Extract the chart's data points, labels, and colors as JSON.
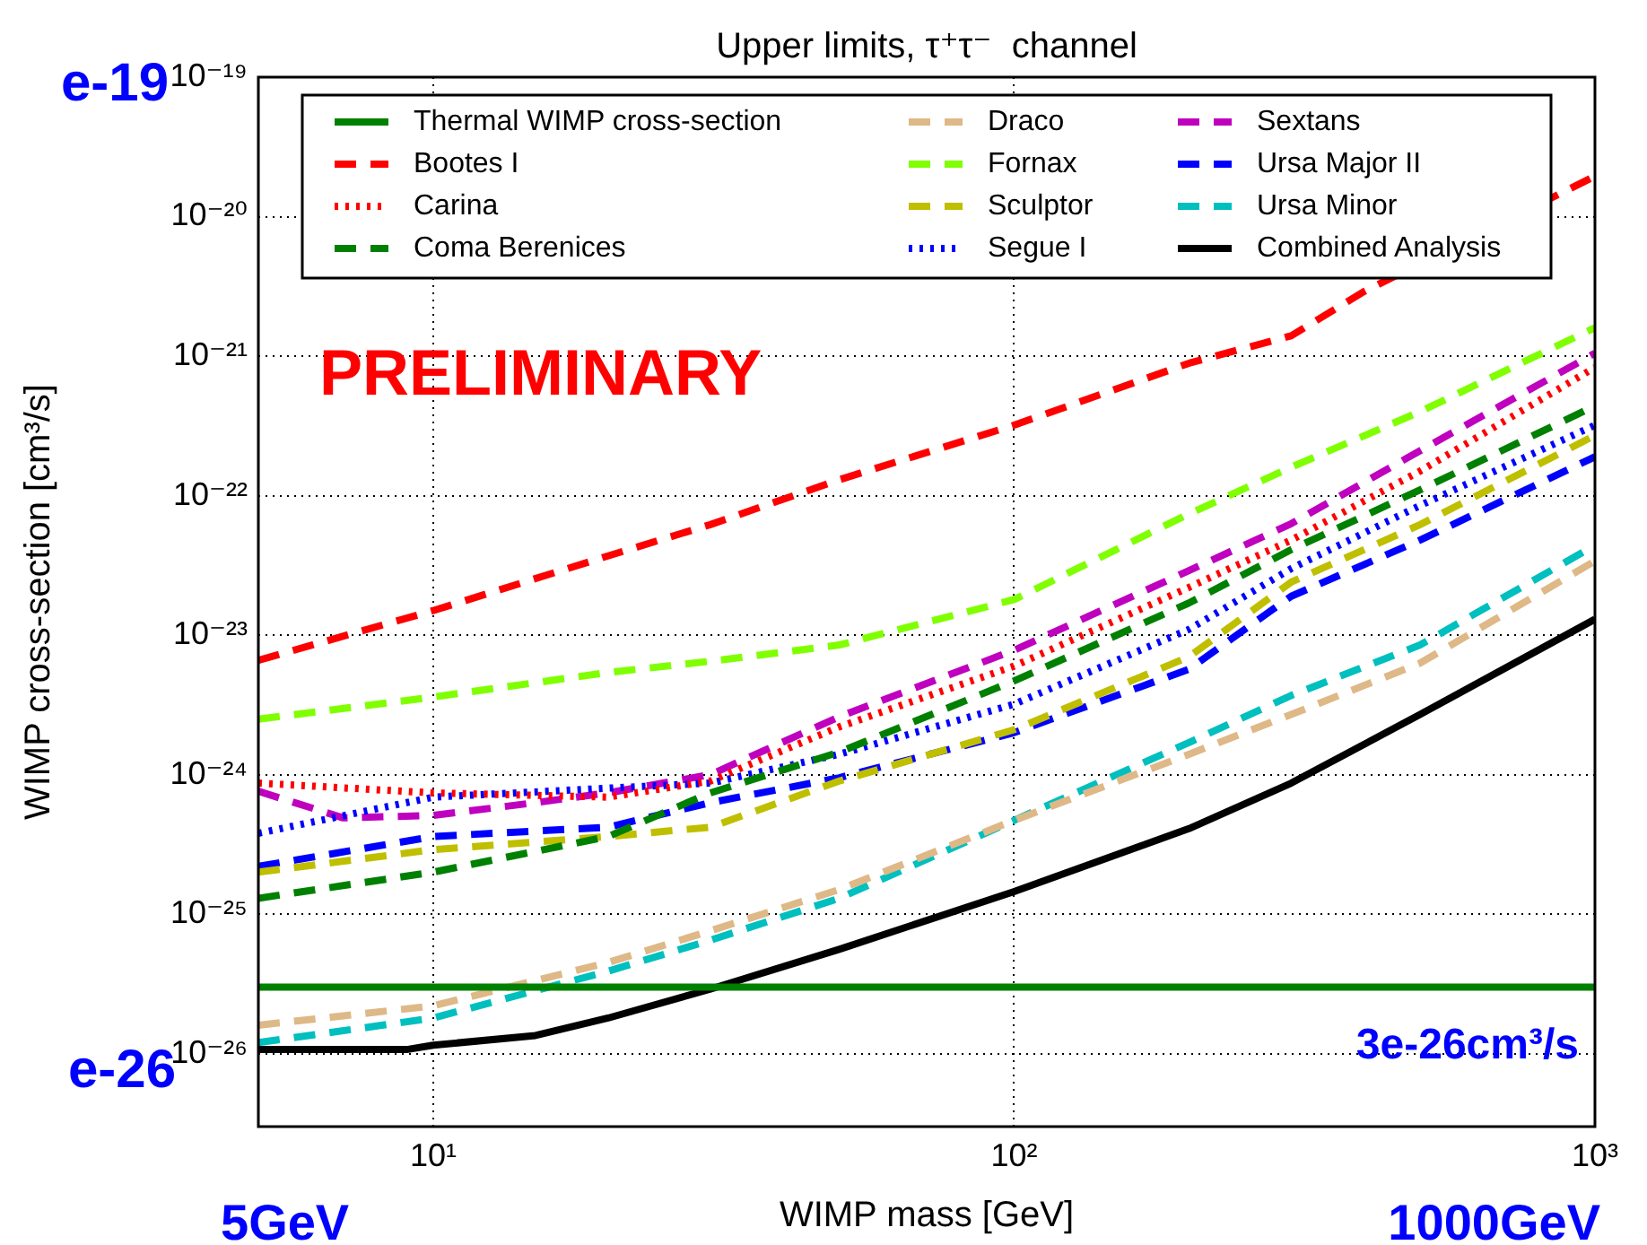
{
  "chart_data": {
    "type": "line",
    "title": "Upper limits, τ⁺τ⁻  channel",
    "xlabel": "WIMP mass [GeV]",
    "ylabel": "WIMP cross-section [cm³/s]",
    "annotations": [
      "PRELIMINARY",
      "e-19",
      "e-26",
      "5GeV",
      "1000GeV",
      "3e-26cm³/s"
    ],
    "log": "xy",
    "grid": true,
    "legend": "top",
    "marker": "none",
    "xlim": [
      5,
      1000
    ],
    "xticks": [
      {
        "value": 10,
        "label": "10¹"
      },
      {
        "value": 100,
        "label": "10²"
      },
      {
        "value": 1000,
        "label": "10³"
      }
    ],
    "ylim": [
      3e-27,
      1e-19
    ],
    "yticks": [
      {
        "value": 1e-26,
        "label": "10⁻²⁶"
      },
      {
        "value": 1e-25,
        "label": "10⁻²⁵"
      },
      {
        "value": 1e-24,
        "label": "10⁻²⁴"
      },
      {
        "value": 1e-23,
        "label": "10⁻²³"
      },
      {
        "value": 1e-22,
        "label": "10⁻²²"
      },
      {
        "value": 1e-21,
        "label": "10⁻²¹"
      },
      {
        "value": 1e-20,
        "label": "10⁻²⁰"
      },
      {
        "value": 1e-19,
        "label": "10⁻¹⁹"
      }
    ],
    "x": [
      5,
      10,
      20,
      30,
      50,
      100,
      200,
      300,
      500,
      1000
    ],
    "series": [
      {
        "name": "Thermal WIMP cross-section",
        "color": "#008000",
        "line_style": "solid",
        "x": [
          5,
          1000
        ],
        "values": [
          3e-26,
          3e-26
        ]
      },
      {
        "name": "Bootes I",
        "color": "#ff0000",
        "line_style": "dashed",
        "x": [
          5,
          10,
          20,
          30,
          50,
          100,
          200,
          300,
          400,
          1000
        ],
        "values": [
          6.6e-24,
          1.5e-23,
          3.7e-23,
          6.2e-23,
          1.3e-22,
          3.2e-22,
          8.9e-22,
          1.4e-21,
          2.9e-21,
          1.95e-20
        ]
      },
      {
        "name": "Carina",
        "color": "#ff0000",
        "line_style": "dotted",
        "values": [
          8.7e-25,
          7.4e-25,
          6.9e-25,
          9e-25,
          2.2e-24,
          6e-24,
          2.2e-23,
          4.8e-23,
          1.5e-22,
          8.3e-22
        ]
      },
      {
        "name": "Coma Berenices",
        "color": "#008000",
        "line_style": "dashed",
        "values": [
          1.3e-25,
          2e-25,
          3.6e-25,
          7.4e-25,
          1.45e-24,
          4.7e-24,
          1.7e-23,
          4.1e-23,
          1.1e-22,
          4.4e-22
        ]
      },
      {
        "name": "Draco",
        "color": "#deb887",
        "line_style": "dashed",
        "values": [
          1.6e-26,
          2.2e-26,
          4.5e-26,
          7.6e-26,
          1.5e-25,
          4.7e-25,
          1.4e-24,
          2.7e-24,
          6.3e-24,
          3.4e-23
        ]
      },
      {
        "name": "Fornax",
        "color": "#7fff00",
        "line_style": "dashed",
        "values": [
          2.5e-24,
          3.6e-24,
          5.4e-24,
          6.5e-24,
          8.5e-24,
          1.8e-23,
          7.4e-23,
          1.6e-22,
          4e-22,
          1.6e-21
        ]
      },
      {
        "name": "Sculptor",
        "color": "#bfbf00",
        "line_style": "dashed",
        "values": [
          2e-25,
          2.9e-25,
          3.6e-25,
          4.2e-25,
          9e-25,
          2.1e-24,
          7e-24,
          2.4e-23,
          6.2e-23,
          2.7e-22
        ]
      },
      {
        "name": "Segue I",
        "color": "#0000ff",
        "line_style": "dotted",
        "values": [
          3.8e-25,
          6.9e-25,
          8e-25,
          8.7e-25,
          1.4e-24,
          3.2e-24,
          1.1e-23,
          3e-23,
          8.5e-23,
          3.2e-22
        ]
      },
      {
        "name": "Sextans",
        "color": "#bf00bf",
        "line_style": "dashed",
        "x": [
          5,
          7,
          10,
          15,
          20,
          30,
          50,
          100,
          200,
          300,
          500,
          1000
        ],
        "values": [
          7.6e-25,
          4.9e-25,
          5.1e-25,
          6.3e-25,
          7.4e-25,
          1e-24,
          2.6e-24,
          7.8e-24,
          2.9e-23,
          6.3e-23,
          2.1e-22,
          1.05e-21
        ]
      },
      {
        "name": "Ursa Major II",
        "color": "#0000ff",
        "line_style": "dashed",
        "values": [
          2.2e-25,
          3.6e-25,
          4.2e-25,
          6.3e-25,
          9.5e-25,
          2e-24,
          5.7e-24,
          1.9e-23,
          4.8e-23,
          1.9e-22
        ]
      },
      {
        "name": "Ursa Minor",
        "color": "#00bfbf",
        "line_style": "dashed",
        "values": [
          1.2e-26,
          1.8e-26,
          3.9e-26,
          6.5e-26,
          1.3e-25,
          4.7e-25,
          1.7e-24,
          3.7e-24,
          8.5e-24,
          4.4e-23
        ]
      },
      {
        "name": "Combined Analysis",
        "color": "#000000",
        "line_style": "solid",
        "x": [
          5,
          9,
          10,
          15,
          20,
          30,
          50,
          100,
          200,
          300,
          500,
          1000
        ],
        "values": [
          1.07e-26,
          1.07e-26,
          1.15e-26,
          1.35e-26,
          1.8e-26,
          2.9e-26,
          5.6e-26,
          1.45e-25,
          4.1e-25,
          8.7e-25,
          2.7e-24,
          1.3e-23
        ]
      }
    ]
  }
}
